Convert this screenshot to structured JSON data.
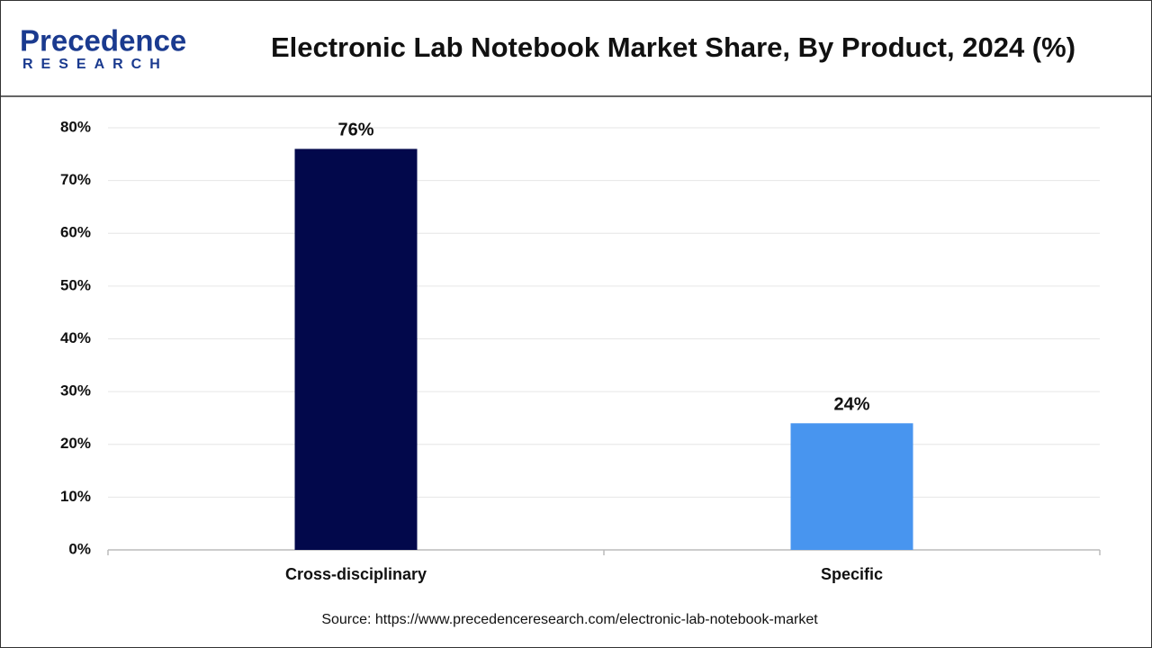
{
  "logo": {
    "name": "Precedence",
    "tagline": "RESEARCH"
  },
  "chart_data": {
    "type": "bar",
    "title": "Electronic Lab Notebook Market Share, By Product, 2024 (%)",
    "categories": [
      "Cross-disciplinary",
      "Specific"
    ],
    "values": [
      76,
      24
    ],
    "value_labels": [
      "76%",
      "24%"
    ],
    "colors": [
      "#02084b",
      "#4895ef"
    ],
    "ylim": [
      0,
      80
    ],
    "yticks": [
      {
        "value": 0,
        "label": "0%"
      },
      {
        "value": 10,
        "label": "10%"
      },
      {
        "value": 20,
        "label": "20%"
      },
      {
        "value": 30,
        "label": "30%"
      },
      {
        "value": 40,
        "label": "40%"
      },
      {
        "value": 50,
        "label": "50%"
      },
      {
        "value": 60,
        "label": "60%"
      },
      {
        "value": 70,
        "label": "70%"
      },
      {
        "value": 80,
        "label": "80%"
      }
    ],
    "grid": true,
    "source": "Source: https://www.precedenceresearch.com/electronic-lab-notebook-market"
  }
}
